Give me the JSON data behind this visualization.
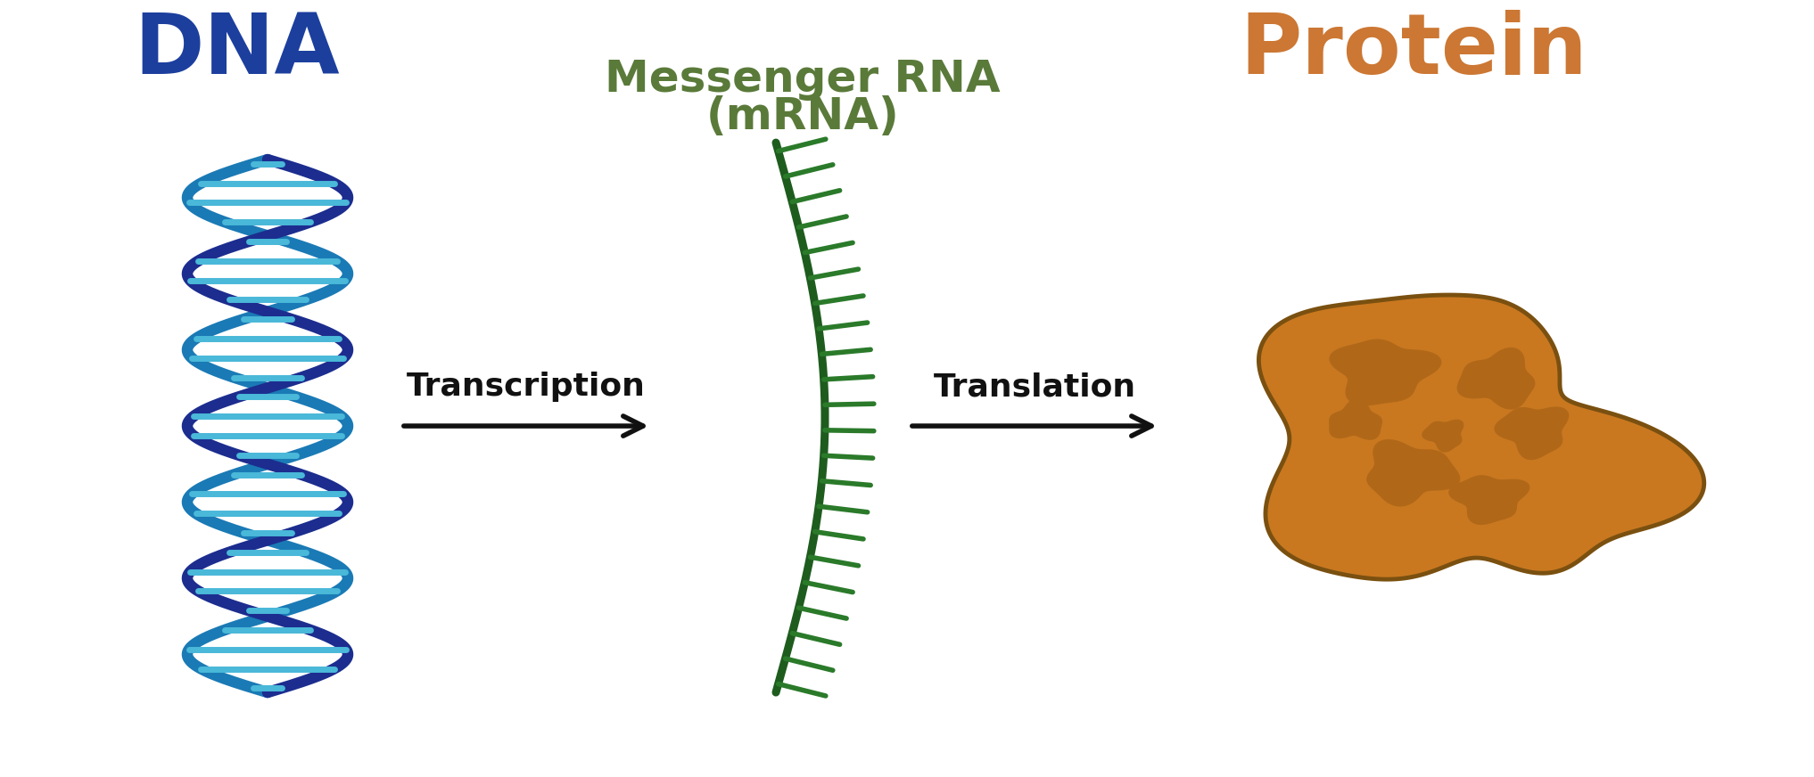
{
  "bg_color": "#ffffff",
  "dna_label": "DNA",
  "dna_label_color": "#1c3f9e",
  "mrna_label_line1": "Messenger RNA",
  "mrna_label_line2": "(mRNA)",
  "mrna_label_color": "#5a7a3a",
  "protein_label": "Protein",
  "protein_label_color": "#cc7733",
  "transcription_label": "Transcription",
  "translation_label": "Translation",
  "arrow_color": "#111111",
  "dna_strand1_color": "#1c2d8f",
  "dna_strand2_color": "#1a7ab5",
  "dna_rung_color": "#4ab8d8",
  "mrna_backbone_color": "#1e5c1e",
  "mrna_tooth_color": "#2a7a2a",
  "protein_fill_color": "#c97820",
  "protein_outline_color": "#7a5010",
  "protein_shadow_color": "#b06818",
  "fig_width": 20.34,
  "fig_height": 8.72
}
